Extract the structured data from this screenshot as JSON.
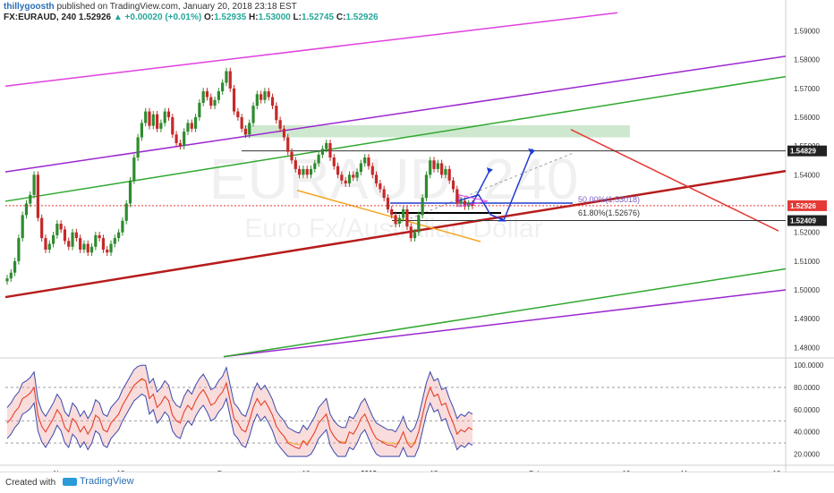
{
  "header": {
    "publisher": "thillygoosth",
    "published_text": "published on TradingView.com, January 20, 2018 23:18 EST",
    "symbol": "FX:EURAUD, 240",
    "last": "1.52926",
    "change": "+0.00020 (+0.01%)",
    "o_label": "O:",
    "o_value": "1.52935",
    "h_label": "H:",
    "h_value": "1.53000",
    "l_label": "L:",
    "l_value": "1.52745",
    "c_label": "C:",
    "c_value": "1.52926"
  },
  "watermark": {
    "symbol": "EURAUD, 240",
    "description": "Euro Fx/Australian Dollar"
  },
  "footer": {
    "created": "Created with",
    "brand": "TradingView"
  },
  "colors": {
    "up": "#26a69a",
    "candle_up": "#2e8b2e",
    "candle_down": "#c62828",
    "magenta": "#e040e0",
    "purple": "#9c27d0",
    "green": "#2ea82e",
    "darkred": "#b71c1c",
    "red": "#e53935",
    "orange": "#f5a623",
    "blue": "#1f3bd1"
  },
  "chart_data": {
    "type": "candlestick",
    "symbol": "FX:EURAUD",
    "interval": "240",
    "price_axis": {
      "ticks": [
        "1.59000",
        "1.58000",
        "1.57000",
        "1.56000",
        "1.55000",
        "1.54000",
        "1.53000",
        "1.52000",
        "1.51000",
        "1.50000",
        "1.49000",
        "1.48000"
      ],
      "range": [
        1.477,
        1.597
      ]
    },
    "price_labels": [
      {
        "price": 1.54829,
        "text": "1.54829",
        "style": "dark"
      },
      {
        "price": 1.52926,
        "text": "1.52926",
        "style": "red"
      },
      {
        "price": 1.52409,
        "text": "1.52409",
        "style": "dark"
      }
    ],
    "time_axis": [
      "Nov",
      "13",
      "Dec",
      "18",
      "2018",
      "15",
      "Feb",
      "19",
      "Mar",
      "19"
    ],
    "fib_levels": [
      {
        "text": "50.00%(1.53018)",
        "price": 1.53018
      },
      {
        "text": "61.80%(1.52676)",
        "price": 1.52676
      }
    ],
    "closes": [
      1.504,
      1.506,
      1.51,
      1.518,
      1.526,
      1.53,
      1.533,
      1.54,
      1.525,
      1.518,
      1.514,
      1.516,
      1.519,
      1.523,
      1.521,
      1.517,
      1.515,
      1.52,
      1.518,
      1.514,
      1.516,
      1.513,
      1.515,
      1.519,
      1.518,
      1.514,
      1.513,
      1.516,
      1.518,
      1.52,
      1.524,
      1.53,
      1.538,
      1.546,
      1.553,
      1.558,
      1.562,
      1.557,
      1.561,
      1.556,
      1.558,
      1.562,
      1.56,
      1.554,
      1.551,
      1.55,
      1.555,
      1.558,
      1.556,
      1.56,
      1.565,
      1.569,
      1.567,
      1.564,
      1.566,
      1.569,
      1.572,
      1.576,
      1.57,
      1.562,
      1.56,
      1.556,
      1.554,
      1.558,
      1.564,
      1.568,
      1.566,
      1.569,
      1.567,
      1.564,
      1.559,
      1.556,
      1.553,
      1.548,
      1.545,
      1.542,
      1.54,
      1.542,
      1.54,
      1.542,
      1.544,
      1.547,
      1.549,
      1.551,
      1.546,
      1.543,
      1.54,
      1.538,
      1.537,
      1.54,
      1.539,
      1.541,
      1.544,
      1.546,
      1.543,
      1.54,
      1.537,
      1.535,
      1.532,
      1.528,
      1.526,
      1.523,
      1.525,
      1.528,
      1.522,
      1.518,
      1.52,
      1.526,
      1.532,
      1.54,
      1.545,
      1.542,
      1.544,
      1.54,
      1.542,
      1.538,
      1.535,
      1.53,
      1.531,
      1.529,
      1.53,
      1.52926
    ],
    "rsi_panel": {
      "ticks": [
        "100.0000",
        "80.0000",
        "60.0000",
        "40.0000",
        "20.0000"
      ],
      "range": [
        10,
        105
      ],
      "rsi": [
        48,
        52,
        58,
        62,
        70,
        72,
        75,
        80,
        55,
        45,
        40,
        46,
        52,
        60,
        55,
        44,
        40,
        52,
        48,
        40,
        45,
        38,
        44,
        55,
        52,
        42,
        40,
        48,
        52,
        56,
        64,
        70,
        76,
        82,
        85,
        88,
        86,
        70,
        74,
        62,
        66,
        72,
        68,
        55,
        50,
        48,
        58,
        64,
        60,
        68,
        74,
        78,
        72,
        64,
        66,
        72,
        76,
        84,
        68,
        52,
        48,
        42,
        40,
        50,
        62,
        70,
        64,
        68,
        62,
        55,
        45,
        40,
        36,
        30,
        28,
        26,
        25,
        32,
        28,
        34,
        40,
        48,
        52,
        56,
        42,
        36,
        32,
        30,
        30,
        40,
        38,
        44,
        52,
        56,
        48,
        40,
        34,
        32,
        30,
        28,
        28,
        26,
        32,
        40,
        30,
        26,
        30,
        40,
        55,
        70,
        80,
        72,
        74,
        64,
        66,
        56,
        48,
        38,
        42,
        40,
        44,
        42
      ],
      "bands_upper": 96,
      "bands_lower": 22
    }
  }
}
